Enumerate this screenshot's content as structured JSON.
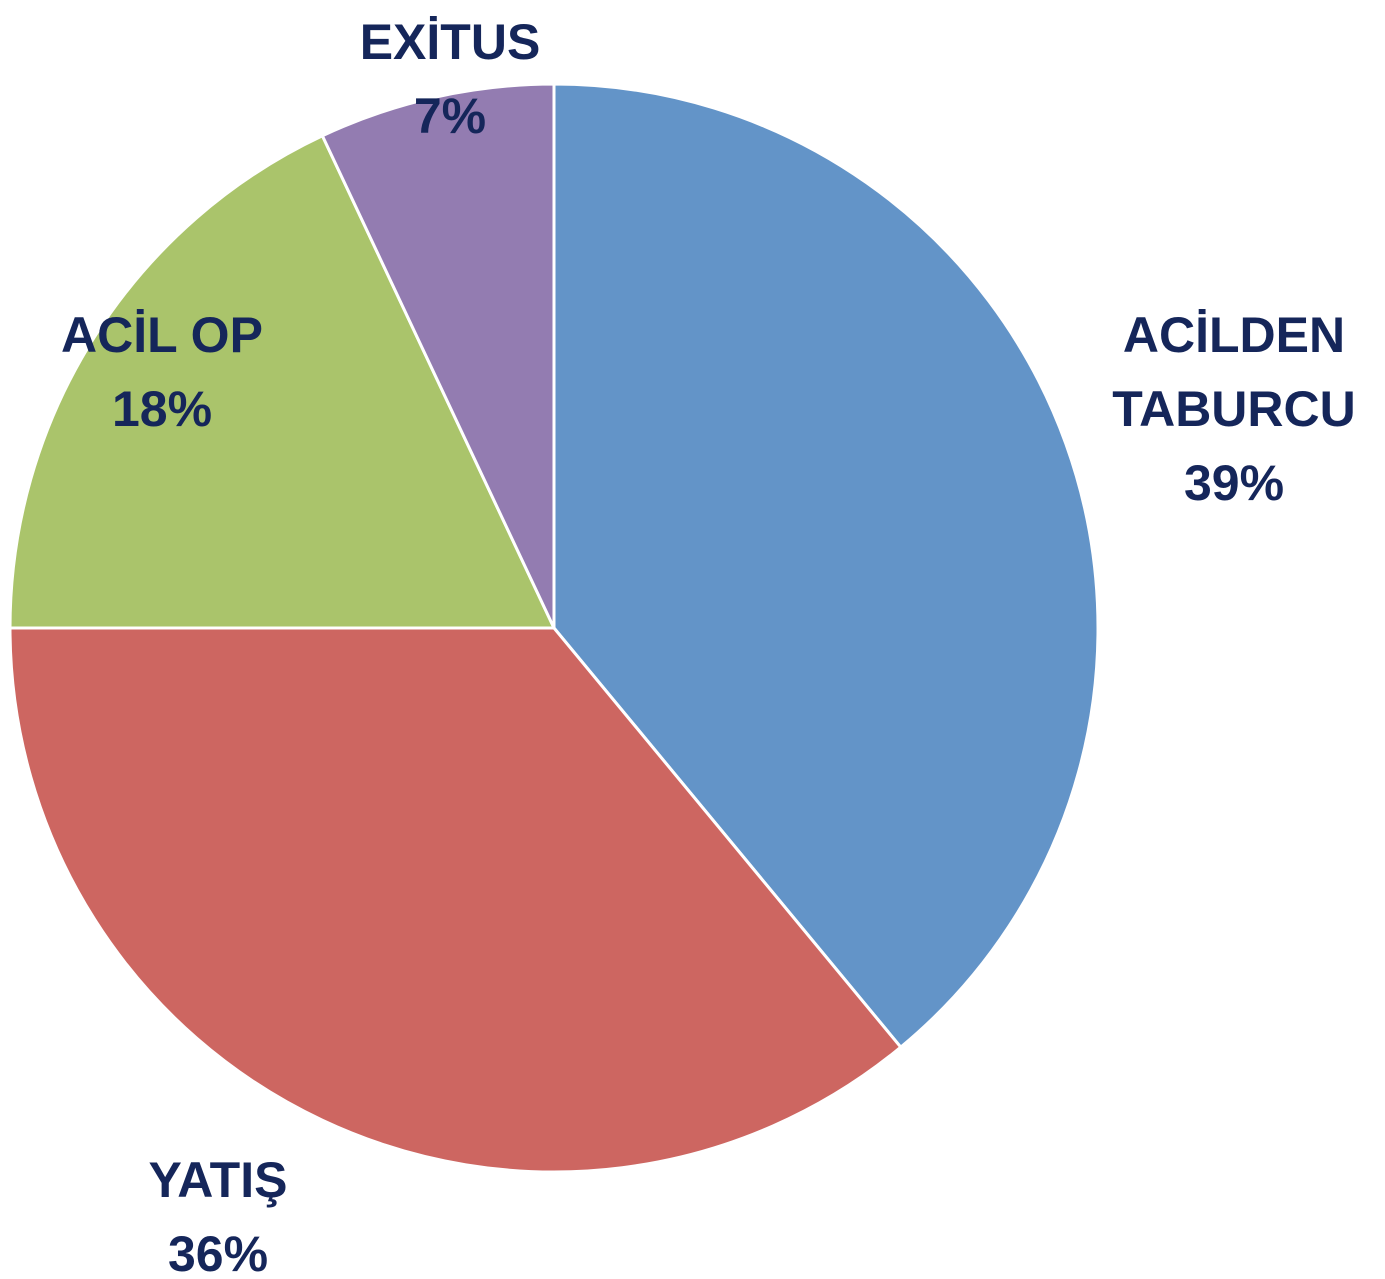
{
  "chart_data": {
    "type": "pie",
    "categories": [
      "ACİLDEN TABURCU",
      "YATIŞ",
      "ACİL OP",
      "EXİTUS"
    ],
    "values": [
      39,
      36,
      18,
      7
    ],
    "value_labels": [
      "39%",
      "36%",
      "18%",
      "7%"
    ],
    "colors": [
      "#6394c8",
      "#cd6661",
      "#aac46b",
      "#937cb1"
    ]
  }
}
